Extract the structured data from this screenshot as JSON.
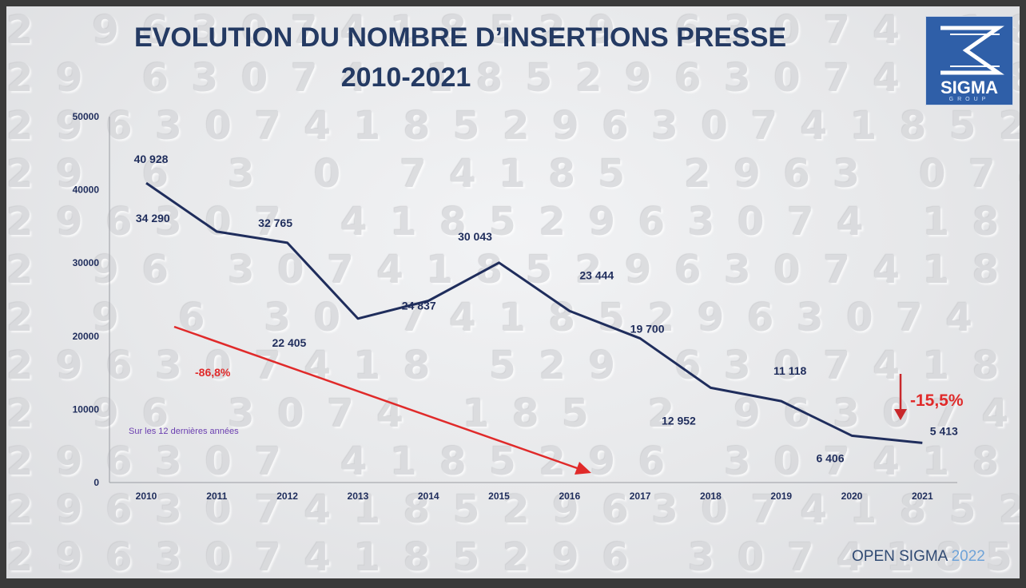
{
  "title": {
    "line1": "EVOLUTION DU NOMBRE D’INSERTIONS PRESSE",
    "line2": "2010-2021"
  },
  "logo": {
    "name": "SIGMA",
    "sub": "GROUP",
    "icon": "sigma-icon"
  },
  "footer": {
    "brand": "OPEN SIGMA",
    "year": "2022"
  },
  "colors": {
    "title": "#243a63",
    "line": "#1f2d5c",
    "axis_labels": "#1f2d5c",
    "trend_arrow": "#e02a2a",
    "note": "#6b3fb0",
    "logo_bg": "#2f5fa8"
  },
  "chart_data": {
    "type": "line",
    "title": "EVOLUTION DU NOMBRE D’INSERTIONS PRESSE 2010-2021",
    "xlabel": "",
    "ylabel": "",
    "ylim": [
      0,
      50000
    ],
    "yticks": [
      0,
      10000,
      20000,
      30000,
      40000,
      50000
    ],
    "grid": false,
    "categories": [
      "2010",
      "2011",
      "2012",
      "2013",
      "2014",
      "2015",
      "2016",
      "2017",
      "2018",
      "2019",
      "2020",
      "2021"
    ],
    "series": [
      {
        "values": [
          40928,
          34290,
          32765,
          22405,
          24837,
          30043,
          23444,
          19700,
          12952,
          11118,
          6406,
          5413
        ],
        "labels": [
          "40 928",
          "34 290",
          "32 765",
          "22 405",
          "24 837",
          "30 043",
          "23 444",
          "19 700",
          "12 952",
          "11 118",
          "6 406",
          "5 413"
        ]
      }
    ],
    "annotations": {
      "total_change": "-86,8%",
      "total_change_note": "Sur les 12 dernières années",
      "last_year_change": "-15,5%"
    }
  }
}
